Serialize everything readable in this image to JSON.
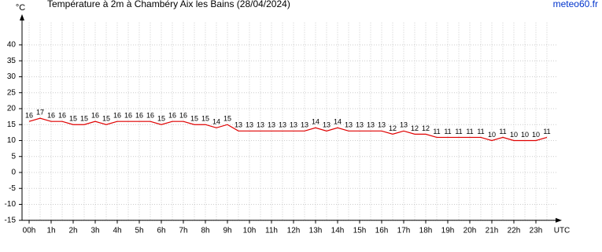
{
  "chart_data": {
    "type": "line",
    "title": "Température à 2m à Chambéry Aix les Bains (28/04/2024)",
    "source": "meteo60.fr",
    "y_label": "°C",
    "x_label": "UTC",
    "x": [
      0,
      0.5,
      1,
      1.5,
      2,
      2.5,
      3,
      3.5,
      4,
      4.5,
      5,
      5.5,
      6,
      6.5,
      7,
      7.5,
      8,
      8.5,
      9,
      9.5,
      10,
      10.5,
      11,
      11.5,
      12,
      12.5,
      13,
      13.5,
      14,
      14.5,
      15,
      15.5,
      16,
      16.5,
      17,
      17.5,
      18,
      18.5,
      19,
      19.5,
      20,
      20.5,
      21,
      21.5,
      22,
      22.5,
      23,
      23.5
    ],
    "series": [
      {
        "name": "Température",
        "color": "#e00000",
        "values": [
          16,
          17,
          16,
          16,
          15,
          15,
          16,
          15,
          16,
          16,
          16,
          16,
          15,
          16,
          16,
          15,
          15,
          14,
          15,
          13,
          13,
          13,
          13,
          13,
          13,
          13,
          14,
          13,
          14,
          13,
          13,
          13,
          13,
          12,
          13,
          12,
          12,
          11,
          11,
          11,
          11,
          11,
          10,
          11,
          10,
          10,
          10,
          11
        ]
      }
    ],
    "xlim": [
      -0.5,
      24
    ],
    "xticks": [
      {
        "value": 0,
        "label": "00h"
      },
      {
        "value": 1,
        "label": "1h"
      },
      {
        "value": 2,
        "label": "2h"
      },
      {
        "value": 3,
        "label": "3h"
      },
      {
        "value": 4,
        "label": "4h"
      },
      {
        "value": 5,
        "label": "5h"
      },
      {
        "value": 6,
        "label": "6h"
      },
      {
        "value": 7,
        "label": "7h"
      },
      {
        "value": 8,
        "label": "8h"
      },
      {
        "value": 9,
        "label": "9h"
      },
      {
        "value": 10,
        "label": "10h"
      },
      {
        "value": 11,
        "label": "11h"
      },
      {
        "value": 12,
        "label": "12h"
      },
      {
        "value": 13,
        "label": "13h"
      },
      {
        "value": 14,
        "label": "14h"
      },
      {
        "value": 15,
        "label": "15h"
      },
      {
        "value": 16,
        "label": "16h"
      },
      {
        "value": 17,
        "label": "17h"
      },
      {
        "value": 18,
        "label": "18h"
      },
      {
        "value": 19,
        "label": "19h"
      },
      {
        "value": 20,
        "label": "20h"
      },
      {
        "value": 21,
        "label": "21h"
      },
      {
        "value": 22,
        "label": "22h"
      },
      {
        "value": 23,
        "label": "23h"
      }
    ],
    "ylim": [
      -15,
      47
    ],
    "yticks": [
      -15,
      -10,
      -5,
      0,
      5,
      10,
      15,
      20,
      25,
      30,
      35,
      40
    ],
    "grid": true
  }
}
